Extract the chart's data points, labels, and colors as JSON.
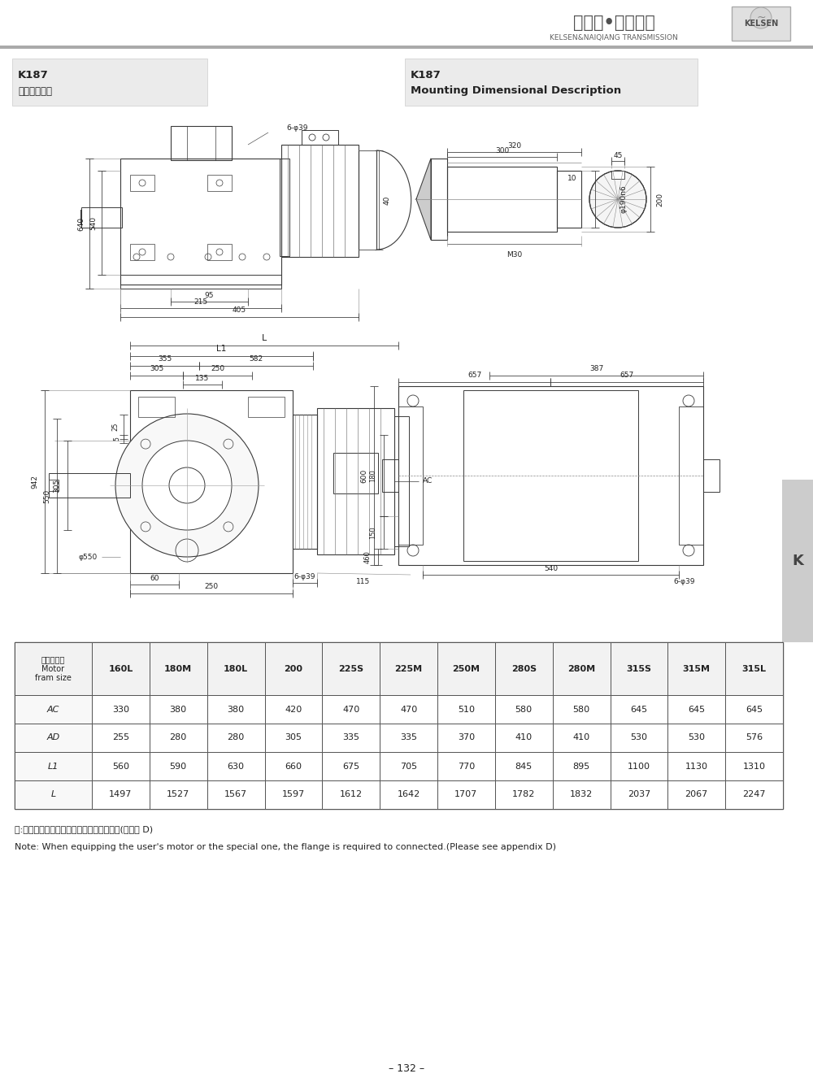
{
  "page_width": 10.0,
  "page_height": 13.42,
  "bg_color": "#ffffff",
  "header_logo_text": "凯尔森•耐强传动",
  "header_logo_sub": "KELSEN&NAIQIANG TRANSMISSION",
  "header_logo_box": "KELSEN",
  "title_left_main": "K187",
  "title_left_sub": "安装结构尺寸",
  "title_right_main": "K187",
  "title_right_sub": "Mounting Dimensional Description",
  "table_headers": [
    "电机机座号\nMotor\nfram size",
    "160L",
    "180M",
    "180L",
    "200",
    "225S",
    "225M",
    "250M",
    "280S",
    "280M",
    "315S",
    "315M",
    "315L"
  ],
  "table_rows": [
    [
      "AC",
      "330",
      "380",
      "380",
      "420",
      "470",
      "470",
      "510",
      "580",
      "580",
      "645",
      "645",
      "645"
    ],
    [
      "AD",
      "255",
      "280",
      "280",
      "305",
      "335",
      "335",
      "370",
      "410",
      "410",
      "530",
      "530",
      "576"
    ],
    [
      "L1",
      "560",
      "590",
      "630",
      "660",
      "675",
      "705",
      "770",
      "845",
      "895",
      "1100",
      "1130",
      "1310"
    ],
    [
      "L",
      "1497",
      "1527",
      "1567",
      "1597",
      "1612",
      "1642",
      "1707",
      "1782",
      "1832",
      "2037",
      "2067",
      "2247"
    ]
  ],
  "note_cn": "注:电机需方配或配特殊电机时需加联接法兰(见附录 D)",
  "note_en": "Note: When equipping the user's motor or the special one, the flange is required to connected.(Please see appendix D)",
  "page_num": "– 132 –",
  "sidebar_text": "K"
}
